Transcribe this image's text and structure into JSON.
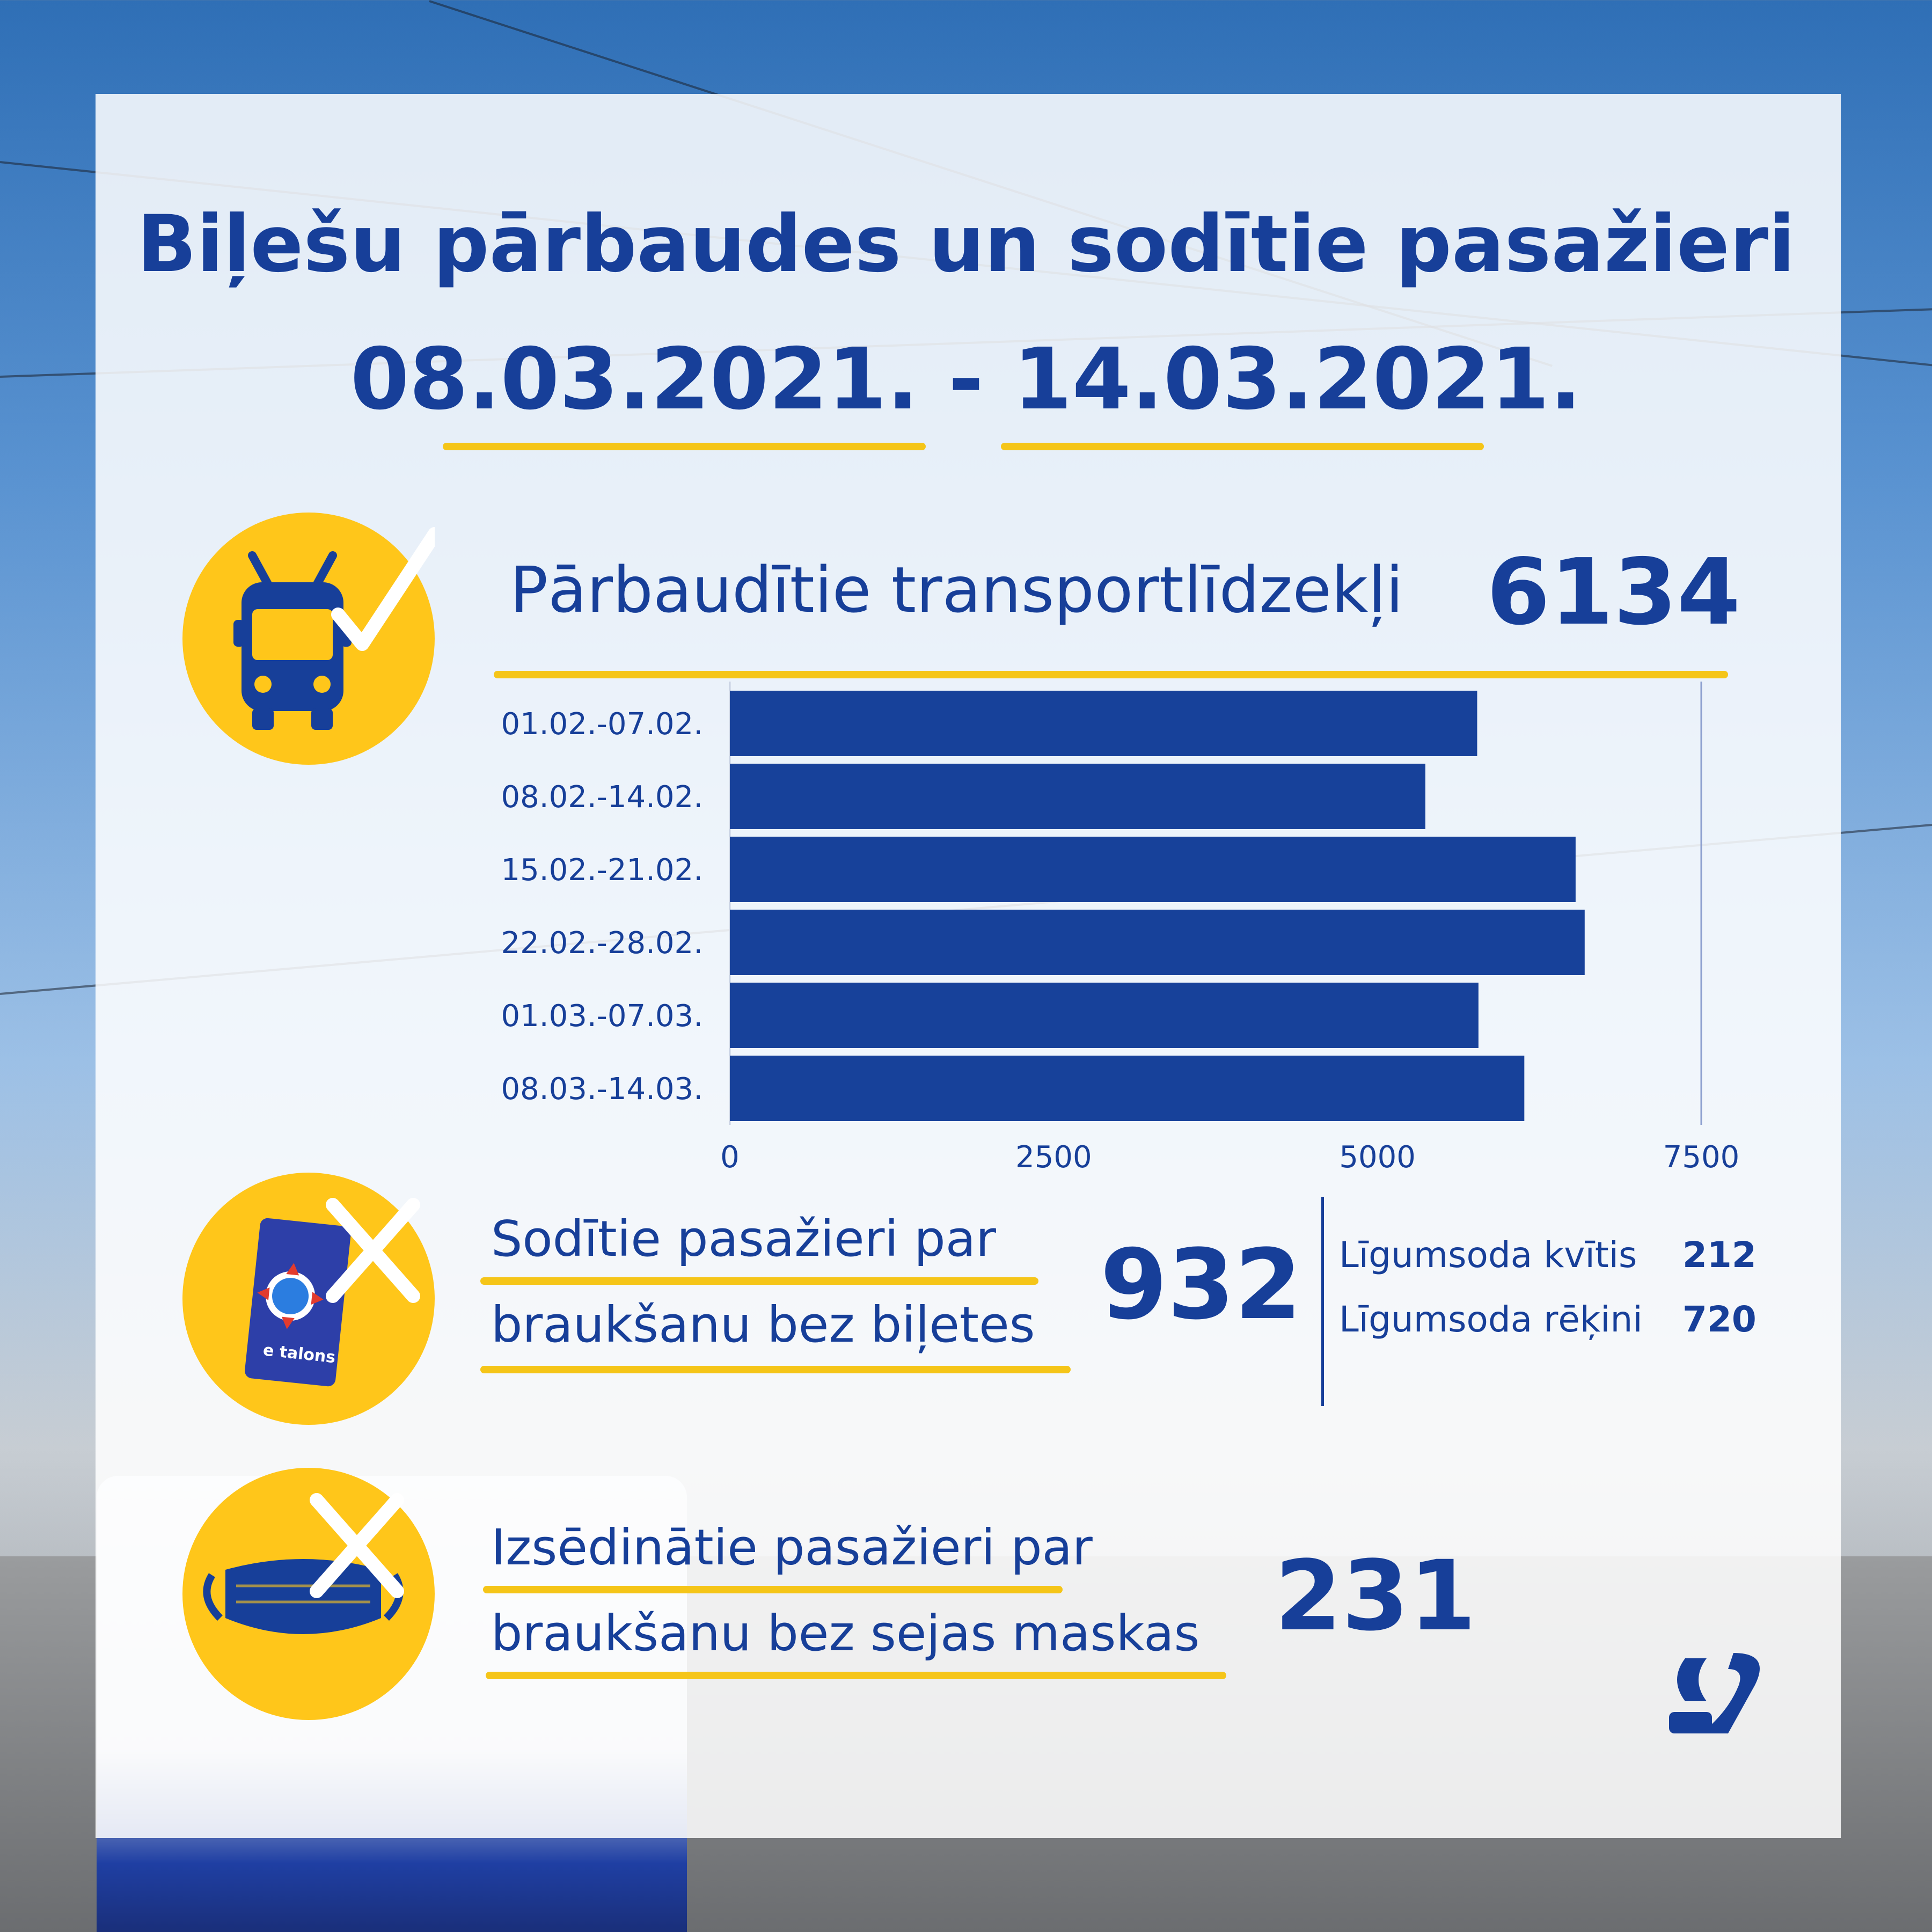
{
  "header": {
    "title": "Biļešu pārbaudes un sodītie pasažieri",
    "date_from": "08.03.2021.",
    "date_separator": "-",
    "date_to": "14.03.2021."
  },
  "checked_vehicles": {
    "label": "Pārbaudītie transportlīdzekļi",
    "value": "6134",
    "icon": "trolleybus-check-icon"
  },
  "fined_no_ticket": {
    "label_line1": "Sodītie pasažieri par",
    "label_line2": "braukšanu bez biļetes",
    "value": "932",
    "icon": "etalons-card-cross-icon",
    "card_label": "e talons",
    "breakdown": [
      {
        "label": "Līgumsoda kvītis",
        "value": "212"
      },
      {
        "label": "Līgumsoda rēķini",
        "value": "720"
      }
    ]
  },
  "removed_no_mask": {
    "label_line1": "Izsēdinātie pasažieri par",
    "label_line2": "braukšanu bez sejas maskas",
    "value": "231",
    "icon": "face-mask-cross-icon"
  },
  "colors": {
    "brand_blue": "#173f99",
    "bar_blue": "#17419a",
    "accent_yellow": "#ffc61a"
  },
  "chart_data": {
    "type": "bar",
    "orientation": "horizontal",
    "categories": [
      "01.02.-07.02.",
      "08.02.-14.02.",
      "15.02.-21.02.",
      "22.02.-28.02.",
      "01.03.-07.03.",
      "08.03.-14.03."
    ],
    "values": [
      5770,
      5370,
      6530,
      6600,
      5780,
      6134
    ],
    "xlim": [
      0,
      7500
    ],
    "xticks": [
      "0",
      "2500",
      "5000",
      "7500"
    ],
    "title": "",
    "xlabel": "",
    "ylabel": "",
    "grid": false
  }
}
